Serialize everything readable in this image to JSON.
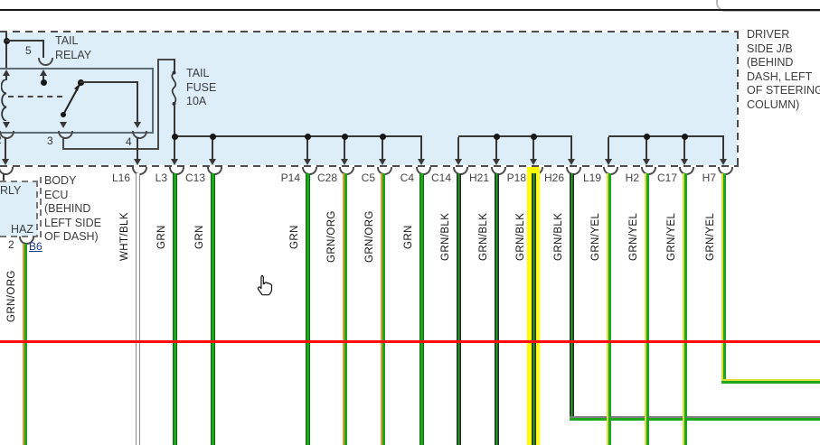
{
  "junction_box": {
    "label_lines": [
      "DRIVER",
      "SIDE J/B",
      "(BEHIND",
      "DASH, LEFT",
      "OF STEERING",
      "COLUMN)"
    ],
    "tail_relay": {
      "name_lines": [
        "TAIL",
        "RELAY"
      ],
      "pins": {
        "p5": "5",
        "p3": "3",
        "p4": "4",
        "p2": "2"
      }
    },
    "tail_fuse": {
      "name_lines": [
        "TAIL",
        "FUSE",
        "10A"
      ]
    }
  },
  "body_ecu": {
    "label_lines": [
      "BODY",
      "ECU",
      "(BEHIND",
      "LEFT SIDE",
      "OF DASH)"
    ],
    "haz_relay": {
      "rly_text": "RLY",
      "haz_text": "HAZ"
    },
    "pin": "2",
    "connector_link": "B6",
    "wire_color_label": "GRN/ORG"
  },
  "terminals": [
    {
      "id": "L16",
      "wire": "WHT/BLK",
      "color": "wht-blk",
      "highlighted": false
    },
    {
      "id": "L3",
      "wire": "GRN",
      "color": "grn",
      "highlighted": false
    },
    {
      "id": "C13",
      "wire": "GRN",
      "color": "grn",
      "highlighted": false
    },
    {
      "id": "P14",
      "wire": "GRN",
      "color": "grn",
      "highlighted": false
    },
    {
      "id": "C28",
      "wire": "GRN/ORG",
      "color": "grn-org",
      "highlighted": false
    },
    {
      "id": "C5",
      "wire": "GRN/ORG",
      "color": "grn-org",
      "highlighted": false
    },
    {
      "id": "C4",
      "wire": "GRN",
      "color": "grn",
      "highlighted": false
    },
    {
      "id": "C14",
      "wire": "GRN/BLK",
      "color": "grn-blk",
      "highlighted": false
    },
    {
      "id": "H21",
      "wire": "GRN/BLK",
      "color": "grn-blk",
      "highlighted": false
    },
    {
      "id": "P18",
      "wire": "GRN/BLK",
      "color": "grn-blk",
      "highlighted": true
    },
    {
      "id": "H26",
      "wire": "GRN/BLK",
      "color": "grn-blk",
      "highlighted": false
    },
    {
      "id": "L19",
      "wire": "GRN/YEL",
      "color": "grn-yel",
      "highlighted": false
    },
    {
      "id": "H2",
      "wire": "GRN/YEL",
      "color": "grn-yel",
      "highlighted": false
    },
    {
      "id": "C17",
      "wire": "GRN/YEL",
      "color": "grn-yel",
      "highlighted": false
    },
    {
      "id": "H7",
      "wire": "GRN/YEL",
      "color": "grn-yel",
      "highlighted": false
    }
  ],
  "colors": {
    "green": "#1fa41f",
    "green_dark": "#0a6e0a",
    "orange": "#e59a2e",
    "yellow_stripe": "#dede30",
    "black_stripe": "#2a2a2a",
    "gray_stripe": "#808080",
    "white_core": "#fbfbfb",
    "white_edge": "#8f8f8f",
    "highlight": "#ffff00",
    "trace_line_red": "#ff0b0b",
    "jb_fill": "#ddeef9"
  }
}
